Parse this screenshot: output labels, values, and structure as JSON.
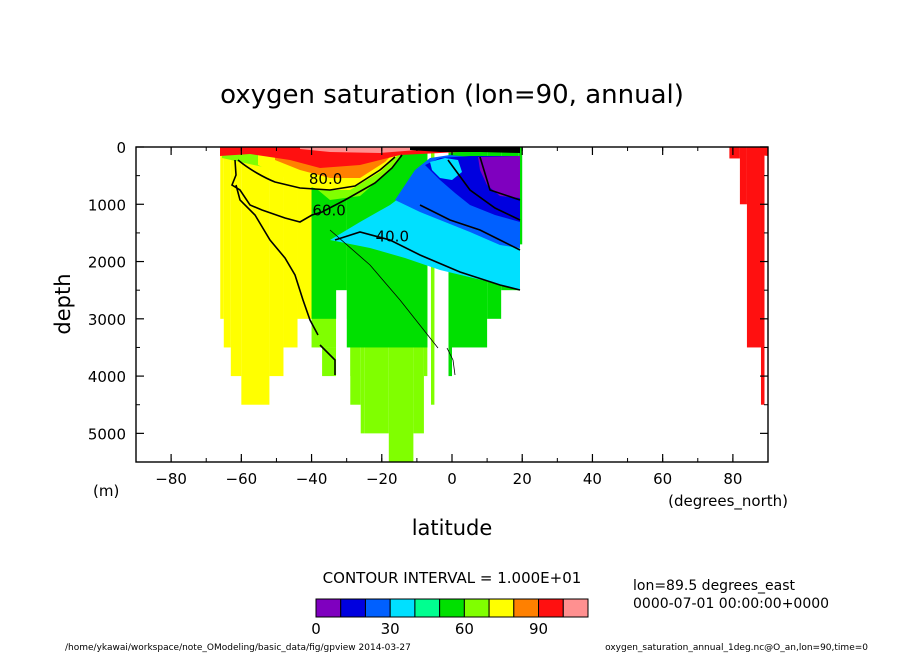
{
  "chart_data": {
    "type": "heatmap",
    "title": "oxygen saturation (lon=90, annual)",
    "xlabel": "latitude",
    "ylabel": "depth",
    "x_unit_label": "(degrees_north)",
    "y_unit_label": "(m)",
    "xlim": [
      -90,
      90
    ],
    "ylim": [
      5500,
      0
    ],
    "x_ticks": [
      -80,
      -60,
      -40,
      -20,
      0,
      20,
      40,
      60,
      80
    ],
    "y_ticks": [
      0,
      1000,
      2000,
      3000,
      4000,
      5000
    ],
    "contour_interval_text": "CONTOUR INTERVAL = 1.000E+01",
    "colorbar": {
      "min": 0,
      "max": 110,
      "step": 10,
      "tick_values": [
        0,
        30,
        60,
        90
      ],
      "colors": [
        "#7f00bf",
        "#0000df",
        "#0060ff",
        "#00e0ff",
        "#00ff90",
        "#00e000",
        "#80ff00",
        "#ffff00",
        "#ff8000",
        "#ff1010",
        "#ff9090"
      ]
    },
    "contour_labels": [
      {
        "text": "80.0",
        "lat": -36,
        "depth": 650
      },
      {
        "text": "60.0",
        "lat": -35,
        "depth": 1200
      },
      {
        "text": "40.0",
        "lat": -17,
        "depth": 1650
      }
    ],
    "info_lines": [
      "lon=89.5 degrees_east",
      "0000-07-01 00:00:00+0000"
    ],
    "footer_left": "/home/ykawai/workspace/note_OModeling/basic_data/fig/gpview  2014-03-27",
    "footer_right": "oxygen_saturation_annual_1deg.nc@O_an,lon=90,time=0",
    "regions": [
      {
        "lat_min": -66,
        "lat_max": -65,
        "depths": [
          0,
          3000
        ],
        "value": 75
      },
      {
        "lat_min": -65,
        "lat_max": -63,
        "depths": [
          0,
          3500
        ],
        "value": 75
      },
      {
        "lat_min": -63,
        "lat_max": -60,
        "depths": [
          0,
          4000
        ],
        "value": 75
      },
      {
        "lat_min": -60,
        "lat_max": -52,
        "depths": [
          0,
          4500
        ],
        "value": 75
      },
      {
        "lat_min": -52,
        "lat_max": -48,
        "depths": [
          0,
          4000
        ],
        "value": 75
      },
      {
        "lat_min": -48,
        "lat_max": -44,
        "depths": [
          0,
          3500
        ],
        "value": 75
      },
      {
        "lat_min": -44,
        "lat_max": -40,
        "depths": [
          0,
          3000
        ],
        "value": 75
      },
      {
        "lat_min": -40,
        "lat_max": -33,
        "depths": [
          0,
          3500
        ],
        "value": 65
      },
      {
        "lat_min": -37,
        "lat_max": -33,
        "depths": [
          3500,
          4000
        ],
        "value": 65
      },
      {
        "lat_min": -30,
        "lat_max": -29,
        "depths": [
          0,
          2500
        ],
        "value": 65
      },
      {
        "lat_min": -29,
        "lat_max": -26,
        "depths": [
          0,
          4500
        ],
        "value": 65
      },
      {
        "lat_min": -26,
        "lat_max": -25,
        "depths": [
          0,
          5000
        ],
        "value": 65
      },
      {
        "lat_min": -25,
        "lat_max": -18,
        "depths": [
          0,
          5000
        ],
        "value": 65
      },
      {
        "lat_min": -18,
        "lat_max": -11,
        "depths": [
          0,
          5500
        ],
        "value": 65
      },
      {
        "lat_min": -11,
        "lat_max": -8,
        "depths": [
          0,
          5000
        ],
        "value": 65
      },
      {
        "lat_min": -8,
        "lat_max": -7,
        "depths": [
          0,
          4000
        ],
        "value": 65
      },
      {
        "lat_min": -6,
        "lat_max": -5,
        "depths": [
          0,
          4500
        ],
        "value": 65
      },
      {
        "lat_min": -1,
        "lat_max": 0,
        "depths": [
          0,
          4000
        ],
        "value": 50
      },
      {
        "lat_min": 0,
        "lat_max": 10,
        "depths": [
          0,
          3500
        ],
        "value": 50
      },
      {
        "lat_min": 10,
        "lat_max": 14,
        "depths": [
          0,
          3000
        ],
        "value": 50
      },
      {
        "lat_min": 14,
        "lat_max": 19,
        "depths": [
          0,
          2500
        ],
        "value": 50
      },
      {
        "lat_min": 19,
        "lat_max": 20,
        "depths": [
          0,
          1700
        ],
        "value": 50
      },
      {
        "lat_min": 82,
        "lat_max": 84,
        "depths": [
          0,
          1000
        ],
        "value": 95
      },
      {
        "lat_min": 84,
        "lat_max": 88,
        "depths": [
          0,
          3500
        ],
        "value": 95
      },
      {
        "lat_min": 88,
        "lat_max": 89,
        "depths": [
          0,
          4500
        ],
        "value": 95
      },
      {
        "lat_min": 79,
        "lat_max": 82,
        "depths": [
          0,
          200
        ],
        "value": 95
      }
    ]
  }
}
